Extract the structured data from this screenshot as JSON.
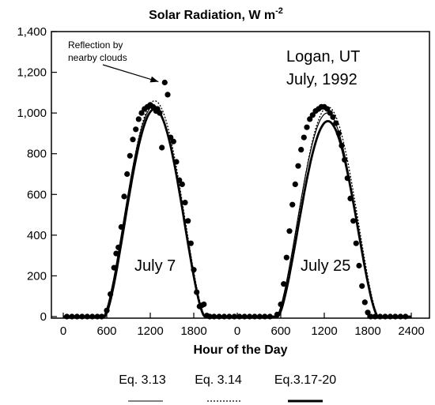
{
  "chart_data": {
    "type": "line",
    "title_main": "Solar Radiation, W m",
    "title_sup": "-2",
    "xlabel": "Hour of the Day",
    "ylabel": "",
    "x_unit": "hour",
    "x_range": [
      0,
      4800
    ],
    "x_ticks": [
      {
        "x": 0,
        "label": "0"
      },
      {
        "x": 600,
        "label": "600"
      },
      {
        "x": 1200,
        "label": "1200"
      },
      {
        "x": 1800,
        "label": "1800"
      },
      {
        "x": 2400,
        "label": "0"
      },
      {
        "x": 3000,
        "label": "600"
      },
      {
        "x": 3600,
        "label": "1200"
      },
      {
        "x": 4200,
        "label": "1800"
      },
      {
        "x": 4800,
        "label": "2400"
      }
    ],
    "ylim": [
      0,
      1400
    ],
    "y_ticks": [
      0,
      200,
      400,
      600,
      800,
      1000,
      1200,
      1400
    ],
    "y_tick_labels": [
      "0",
      "200",
      "400",
      "600",
      "800",
      "1,000",
      "1,200",
      "1,400"
    ],
    "grid": false,
    "legend_position": "bottom",
    "series": [
      {
        "name": "Eq. 3.13",
        "style": "thin-solid",
        "days": [
          {
            "start": 550,
            "end": 1950,
            "peak": 1035
          },
          {
            "start": 2940,
            "end": 4340,
            "peak": 1000
          }
        ]
      },
      {
        "name": "Eq. 3.14",
        "style": "dotted",
        "days": [
          {
            "start": 560,
            "end": 1960,
            "peak": 1060
          },
          {
            "start": 2950,
            "end": 4350,
            "peak": 1030
          }
        ]
      },
      {
        "name": "Eq.3.17-20",
        "style": "thick-solid",
        "days": [
          {
            "start": 570,
            "end": 1950,
            "peak": 1020
          },
          {
            "start": 2960,
            "end": 4340,
            "peak": 960
          }
        ]
      }
    ],
    "measured": {
      "name": "Measured",
      "points": [
        [
          50,
          0
        ],
        [
          120,
          0
        ],
        [
          190,
          0
        ],
        [
          260,
          0
        ],
        [
          330,
          0
        ],
        [
          400,
          0
        ],
        [
          470,
          0
        ],
        [
          530,
          0
        ],
        [
          600,
          30
        ],
        [
          650,
          110
        ],
        [
          700,
          240
        ],
        [
          730,
          310
        ],
        [
          760,
          340
        ],
        [
          800,
          440
        ],
        [
          840,
          590
        ],
        [
          880,
          700
        ],
        [
          920,
          790
        ],
        [
          960,
          870
        ],
        [
          1000,
          920
        ],
        [
          1040,
          970
        ],
        [
          1080,
          1000
        ],
        [
          1120,
          1020
        ],
        [
          1160,
          1030
        ],
        [
          1200,
          1040
        ],
        [
          1240,
          1030
        ],
        [
          1280,
          1010
        ],
        [
          1300,
          1020
        ],
        [
          1330,
          1000
        ],
        [
          1360,
          830
        ],
        [
          1400,
          1150
        ],
        [
          1440,
          1090
        ],
        [
          1480,
          880
        ],
        [
          1520,
          860
        ],
        [
          1560,
          760
        ],
        [
          1600,
          670
        ],
        [
          1640,
          650
        ],
        [
          1680,
          560
        ],
        [
          1720,
          470
        ],
        [
          1760,
          360
        ],
        [
          1800,
          230
        ],
        [
          1840,
          120
        ],
        [
          1880,
          50
        ],
        [
          1910,
          55
        ],
        [
          1940,
          60
        ],
        [
          1980,
          5
        ],
        [
          2020,
          0
        ],
        [
          2080,
          0
        ],
        [
          2150,
          0
        ],
        [
          2220,
          0
        ],
        [
          2290,
          0
        ],
        [
          2360,
          0
        ],
        [
          2430,
          0
        ],
        [
          2500,
          0
        ],
        [
          2570,
          0
        ],
        [
          2640,
          0
        ],
        [
          2710,
          0
        ],
        [
          2780,
          0
        ],
        [
          2850,
          0
        ],
        [
          2950,
          10
        ],
        [
          3000,
          60
        ],
        [
          3040,
          160
        ],
        [
          3080,
          290
        ],
        [
          3120,
          420
        ],
        [
          3160,
          550
        ],
        [
          3200,
          650
        ],
        [
          3240,
          740
        ],
        [
          3280,
          820
        ],
        [
          3320,
          880
        ],
        [
          3360,
          930
        ],
        [
          3400,
          970
        ],
        [
          3440,
          990
        ],
        [
          3480,
          1010
        ],
        [
          3520,
          1020
        ],
        [
          3560,
          1030
        ],
        [
          3600,
          1030
        ],
        [
          3640,
          1020
        ],
        [
          3680,
          1000
        ],
        [
          3720,
          980
        ],
        [
          3760,
          950
        ],
        [
          3800,
          900
        ],
        [
          3840,
          840
        ],
        [
          3880,
          770
        ],
        [
          3920,
          680
        ],
        [
          3960,
          580
        ],
        [
          4000,
          470
        ],
        [
          4040,
          360
        ],
        [
          4080,
          250
        ],
        [
          4120,
          150
        ],
        [
          4160,
          70
        ],
        [
          4200,
          20
        ],
        [
          4240,
          0
        ],
        [
          4300,
          0
        ],
        [
          4370,
          0
        ],
        [
          4440,
          0
        ],
        [
          4510,
          0
        ],
        [
          4580,
          0
        ],
        [
          4650,
          0
        ],
        [
          4720,
          0
        ]
      ]
    },
    "annotations": [
      {
        "text_lines": [
          "Reflection by",
          "nearby clouds"
        ],
        "points_to": [
          1400,
          1150
        ]
      },
      {
        "text_lines": [
          "Logan, UT",
          "July, 1992"
        ]
      },
      {
        "text_lines": [
          "July 7"
        ],
        "at": [
          1200,
          250
        ]
      },
      {
        "text_lines": [
          "July 25"
        ],
        "at": [
          3600,
          250
        ]
      }
    ]
  }
}
